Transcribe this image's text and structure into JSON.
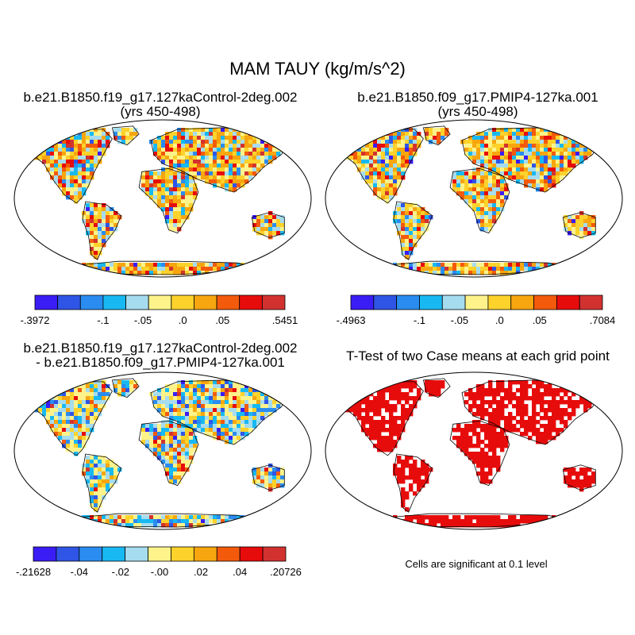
{
  "main_title": "MAM TAUY (kg/m/s^2)",
  "panels": [
    {
      "title_line1": "b.e21.B1850.f19_g17.127kaControl-2deg.002",
      "title_line2": "(yrs 450-498)"
    },
    {
      "title_line1": "b.e21.B1850.f09_g17.PMIP4-127ka.001",
      "title_line2": "(yrs 450-498)"
    },
    {
      "title_line1": "b.e21.B1850.f19_g17.127kaControl-2deg.002",
      "title_line2": "- b.e21.B1850.f09_g17.PMIP4-127ka.001"
    },
    {
      "title_line1": "T-Test of two Case means at each grid point",
      "title_line2": ""
    }
  ],
  "colorbars": [
    {
      "labels": [
        "-.3972",
        "-.1",
        "-.05",
        ".0",
        ".05",
        ".5451"
      ]
    },
    {
      "labels": [
        "-.4963",
        "-.1",
        "-.05",
        ".0",
        ".05",
        ".7084"
      ]
    },
    {
      "labels": [
        "-.21628",
        "-.04",
        "-.02",
        "-.00",
        ".02",
        ".04",
        ".20726"
      ]
    }
  ],
  "palette": [
    "#3a1df5",
    "#2f55e6",
    "#2a8cf0",
    "#18b9f2",
    "#a6dcef",
    "#fdf38a",
    "#fdd22b",
    "#f7a60f",
    "#f35a0b",
    "#e70c0c",
    "#d2322f"
  ],
  "ttest_color": "#e70c0c",
  "ttest_note": "Cells are significant at 0.1 level"
}
